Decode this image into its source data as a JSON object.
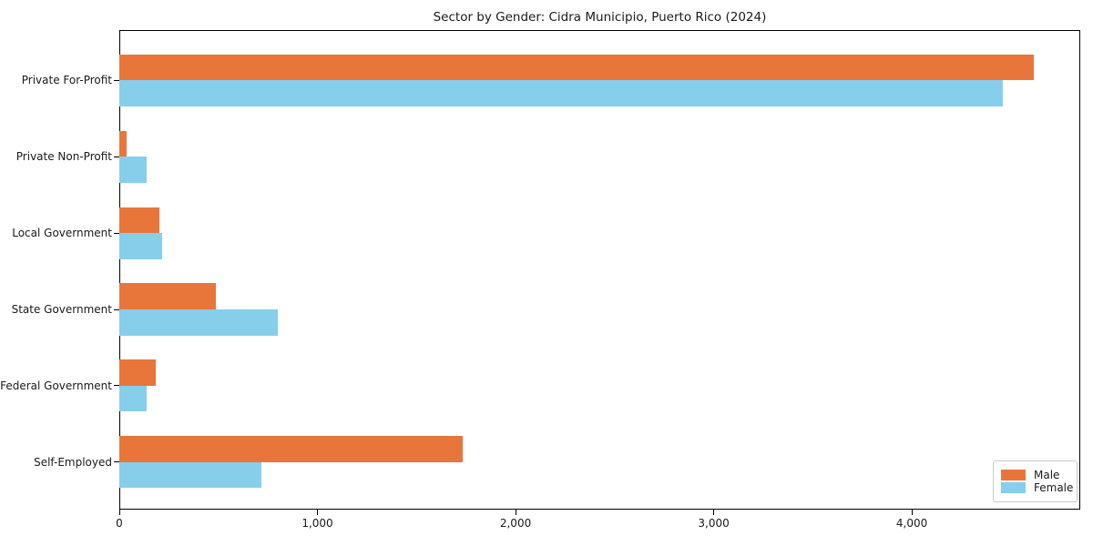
{
  "title": "Sector by Gender: Cidra Municipio, Puerto Rico (2024)",
  "chart_data": {
    "type": "bar",
    "orientation": "horizontal",
    "title": "Sector by Gender: Cidra Municipio, Puerto Rico (2024)",
    "categories": [
      "Private For-Profit",
      "Private Non-Profit",
      "Local Government",
      "State Government",
      "Federal Government",
      "Self-Employed"
    ],
    "series": [
      {
        "name": "Male",
        "color": "#e8763b",
        "values": [
          4615,
          37,
          203,
          488,
          184,
          1732
        ]
      },
      {
        "name": "Female",
        "color": "#87ceeb",
        "values": [
          4457,
          138,
          217,
          800,
          138,
          716
        ]
      }
    ],
    "xlabel": "",
    "ylabel": "",
    "xlim": [
      0,
      4850
    ],
    "xticks": [
      0,
      1000,
      2000,
      3000,
      4000
    ],
    "xtick_labels": [
      "0",
      "1,000",
      "2,000",
      "3,000",
      "4,000"
    ],
    "legend": {
      "position": "lower-right",
      "entries": [
        "Male",
        "Female"
      ]
    },
    "grid": false,
    "colors": {
      "male": "#e8763b",
      "female": "#87ceeb",
      "axis": "#000000",
      "text": "#1a1a1a",
      "legend_border": "#c9c9c9",
      "background": "#ffffff"
    }
  }
}
